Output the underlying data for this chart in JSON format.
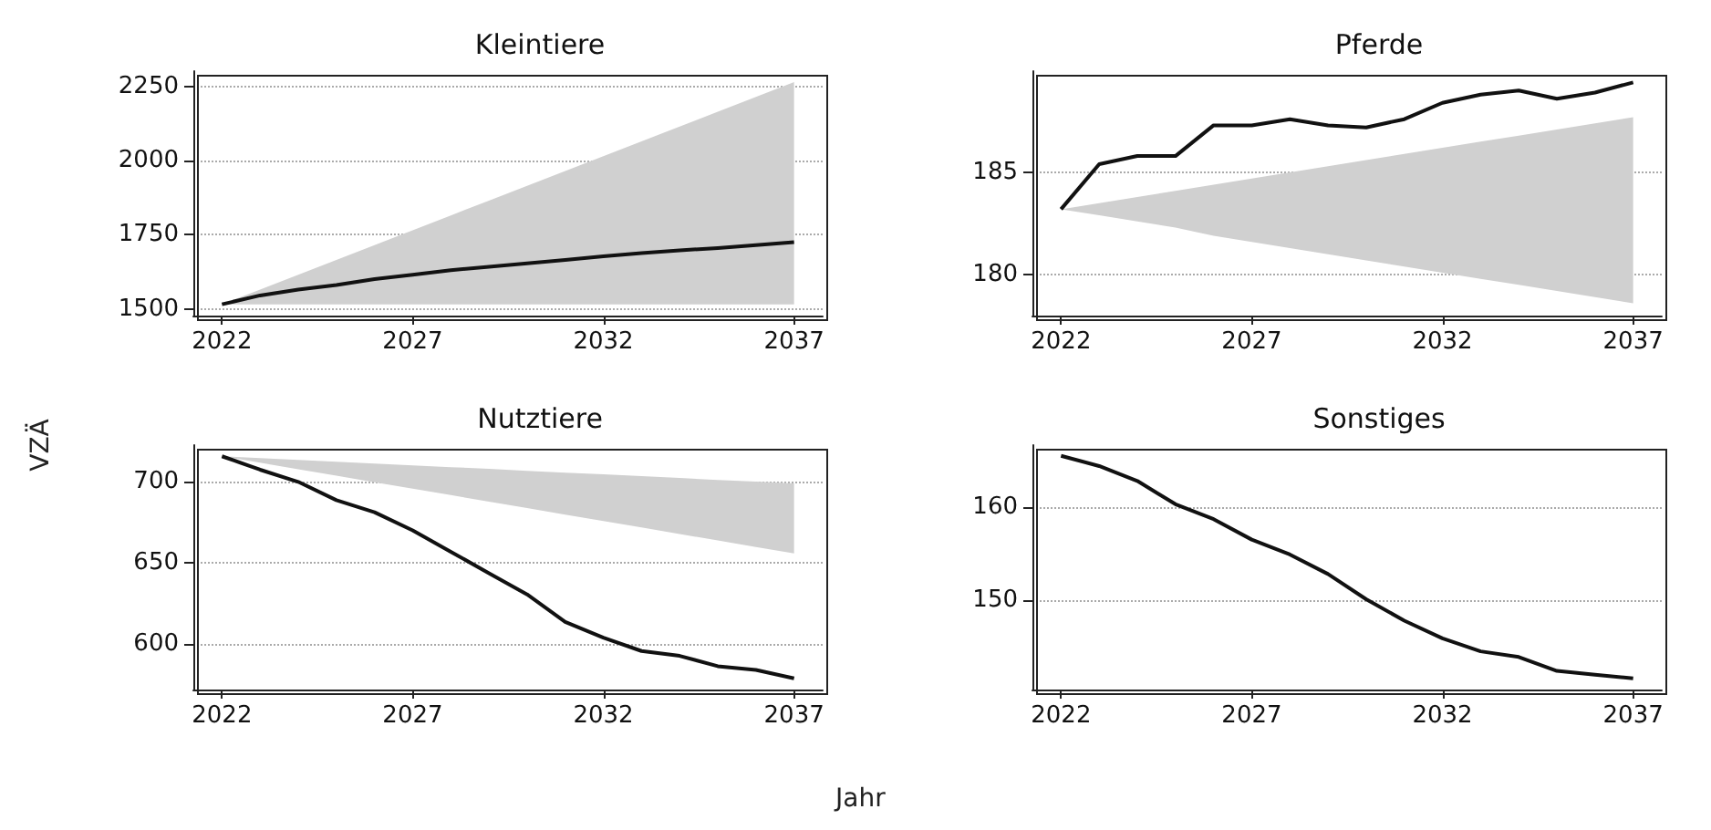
{
  "chart_data": [
    {
      "type": "line",
      "title": "Kleintiere",
      "ylabel": "VZÄ",
      "x": [
        2022,
        2023,
        2024,
        2025,
        2026,
        2027,
        2028,
        2029,
        2030,
        2031,
        2032,
        2033,
        2034,
        2035,
        2036,
        2037
      ],
      "xlim": [
        2021.25,
        2037.75
      ],
      "xticks": [
        2022,
        2027,
        2032,
        2037
      ],
      "ylim": [
        1477,
        2302
      ],
      "yticks": [
        1500,
        1750,
        2000,
        2250
      ],
      "grid": "y",
      "series": [
        {
          "color": "#111111",
          "values": [
            1515,
            1545,
            1565,
            1580,
            1600,
            1615,
            1630,
            1642,
            1653,
            1665,
            1677,
            1688,
            1697,
            1705,
            1715,
            1725
          ],
          "lower": [
            1515,
            1515,
            1515,
            1515,
            1515,
            1515,
            1515,
            1515,
            1515,
            1515,
            1515,
            1515,
            1515,
            1515,
            1515,
            1515
          ],
          "upper": [
            1515,
            1565,
            1615,
            1665,
            1715,
            1765,
            1815,
            1865,
            1915,
            1965,
            2015,
            2065,
            2115,
            2165,
            2215,
            2265
          ]
        }
      ]
    },
    {
      "type": "line",
      "title": "Pferde",
      "x": [
        2022,
        2023,
        2024,
        2025,
        2026,
        2027,
        2028,
        2029,
        2030,
        2031,
        2032,
        2033,
        2034,
        2035,
        2036,
        2037
      ],
      "xlim": [
        2021.25,
        2037.75
      ],
      "xticks": [
        2022,
        2027,
        2032,
        2037
      ],
      "ylim": [
        178.0,
        189.95
      ],
      "yticks": [
        180,
        185
      ],
      "grid": "y",
      "series": [
        {
          "color": "#111111",
          "values": [
            183.2,
            185.4,
            185.8,
            185.8,
            187.3,
            187.3,
            187.6,
            187.3,
            187.2,
            187.6,
            188.4,
            188.8,
            189.0,
            188.6,
            188.9,
            189.4
          ],
          "lower": [
            183.2,
            182.9,
            182.6,
            182.3,
            181.9,
            181.6,
            181.3,
            181.0,
            180.7,
            180.4,
            180.1,
            179.8,
            179.5,
            179.2,
            178.9,
            178.6
          ],
          "upper": [
            183.2,
            183.5,
            183.8,
            184.1,
            184.4,
            184.7,
            185.0,
            185.3,
            185.6,
            185.9,
            186.2,
            186.5,
            186.8,
            187.1,
            187.4,
            187.7
          ]
        }
      ]
    },
    {
      "type": "line",
      "title": "Nutztiere",
      "xlabel": "Jahr",
      "x": [
        2022,
        2023,
        2024,
        2025,
        2026,
        2027,
        2028,
        2029,
        2030,
        2031,
        2032,
        2033,
        2034,
        2035,
        2036,
        2037
      ],
      "xlim": [
        2021.25,
        2037.75
      ],
      "xticks": [
        2022,
        2027,
        2032,
        2037
      ],
      "ylim": [
        571.7,
        722.7
      ],
      "yticks": [
        600,
        650,
        700
      ],
      "grid": "y",
      "series": [
        {
          "color": "#111111",
          "values": [
            715.8,
            707.5,
            700,
            688.7,
            681.2,
            670,
            656.8,
            643.6,
            630.5,
            613.5,
            603.8,
            595.5,
            592.5,
            586.1,
            583.8,
            578.6
          ],
          "lower": [
            715.8,
            711.8,
            707.8,
            703.8,
            699.8,
            695.8,
            691.8,
            687.8,
            683.8,
            679.8,
            675.8,
            671.8,
            667.8,
            663.8,
            659.8,
            655.8
          ],
          "upper": [
            715.8,
            714.7,
            713.6,
            712.4,
            711.3,
            710.2,
            709.1,
            708.0,
            706.8,
            705.7,
            704.6,
            703.5,
            702.4,
            701.2,
            700.1,
            699.0
          ]
        }
      ]
    },
    {
      "type": "line",
      "title": "Sonstiges",
      "x": [
        2022,
        2023,
        2024,
        2025,
        2026,
        2027,
        2028,
        2029,
        2030,
        2031,
        2032,
        2033,
        2034,
        2035,
        2036,
        2037
      ],
      "xlim": [
        2021.25,
        2037.75
      ],
      "xticks": [
        2022,
        2027,
        2032,
        2037
      ],
      "ylim": [
        140.4,
        166.65
      ],
      "yticks": [
        150,
        160
      ],
      "grid": "y",
      "series": [
        {
          "color": "#111111",
          "values": [
            165.5,
            164.4,
            162.8,
            160.3,
            158.7,
            156.5,
            154.9,
            152.8,
            150.1,
            147.8,
            145.9,
            144.5,
            143.9,
            142.4,
            142.0,
            141.6
          ]
        }
      ]
    }
  ]
}
